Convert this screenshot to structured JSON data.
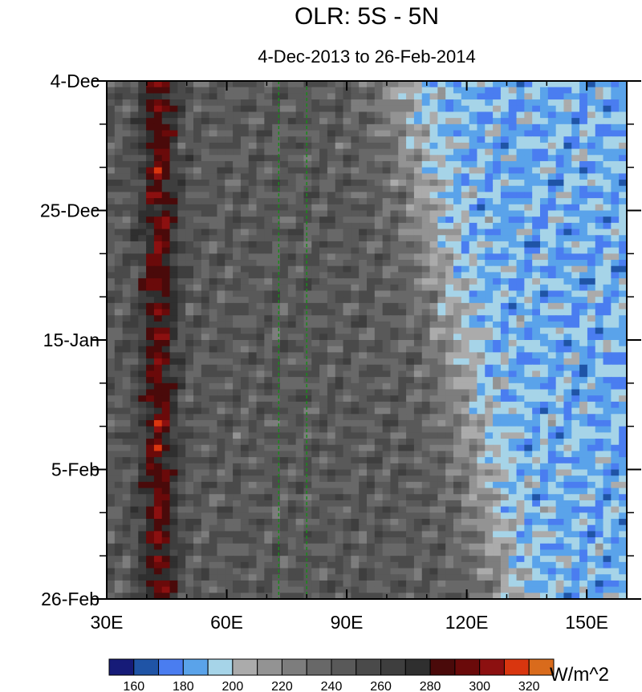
{
  "chart_data": {
    "type": "heatmap",
    "title": "OLR: 5S - 5N",
    "subtitle": "4-Dec-2013 to 26-Feb-2014",
    "xlabel": "",
    "ylabel": "",
    "x_ticks": [
      "30E",
      "60E",
      "90E",
      "120E",
      "150E"
    ],
    "x_tick_values": [
      30,
      60,
      90,
      120,
      150
    ],
    "xlim": [
      30,
      160
    ],
    "y_ticks": [
      "4-Dec",
      "25-Dec",
      "15-Jan",
      "5-Feb",
      "26-Feb"
    ],
    "y_tick_values": [
      "2013-12-04",
      "2013-12-25",
      "2014-01-15",
      "2014-02-05",
      "2014-02-26"
    ],
    "ylim": [
      "2013-12-04",
      "2014-02-26"
    ],
    "reference_lines_x": [
      73,
      80
    ],
    "reference_line_color": "#1a8a1a",
    "colorbar": {
      "units": "W/m^2",
      "levels": [
        160,
        170,
        180,
        190,
        200,
        210,
        220,
        230,
        240,
        250,
        260,
        270,
        280,
        290,
        300,
        310,
        320
      ],
      "labels": [
        "160",
        "180",
        "200",
        "220",
        "240",
        "260",
        "280",
        "300",
        "320"
      ],
      "colors": [
        "#161b78",
        "#1f54a6",
        "#4a7df0",
        "#5aa3ea",
        "#a6d4e8",
        "#ababab",
        "#939393",
        "#7d7d7d",
        "#686868",
        "#595959",
        "#4a4a4a",
        "#3e3e3e",
        "#2f2f2f",
        "#4a0a0a",
        "#6a0a0a",
        "#8c1010",
        "#d9360f",
        "#d96b1c"
      ]
    },
    "grid": false,
    "legend": "bottom"
  }
}
